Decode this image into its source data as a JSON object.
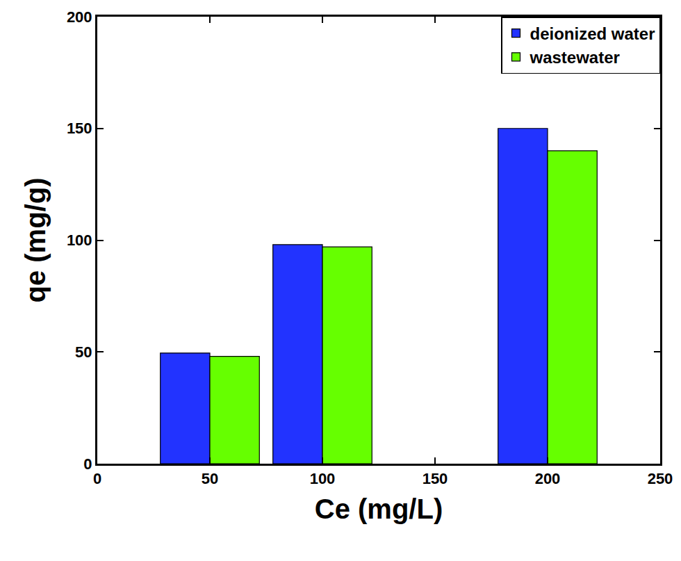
{
  "chart_data": {
    "type": "bar",
    "x_label": "Ce (mg/L)",
    "y_label": "qe (mg/g)",
    "x": [
      50,
      100,
      200
    ],
    "series": [
      {
        "name": "deionized water",
        "color": "#2233ff",
        "values": [
          49.5,
          98,
          150
        ]
      },
      {
        "name": "wastewater",
        "color": "#66ff00",
        "values": [
          48,
          97,
          140
        ]
      }
    ],
    "xlim": [
      0,
      250
    ],
    "xticks": [
      0,
      50,
      100,
      150,
      200,
      250
    ],
    "ylim": [
      0,
      200
    ],
    "yticks": [
      0,
      50,
      100,
      150,
      200
    ],
    "grid": false,
    "legend": "upper right"
  }
}
